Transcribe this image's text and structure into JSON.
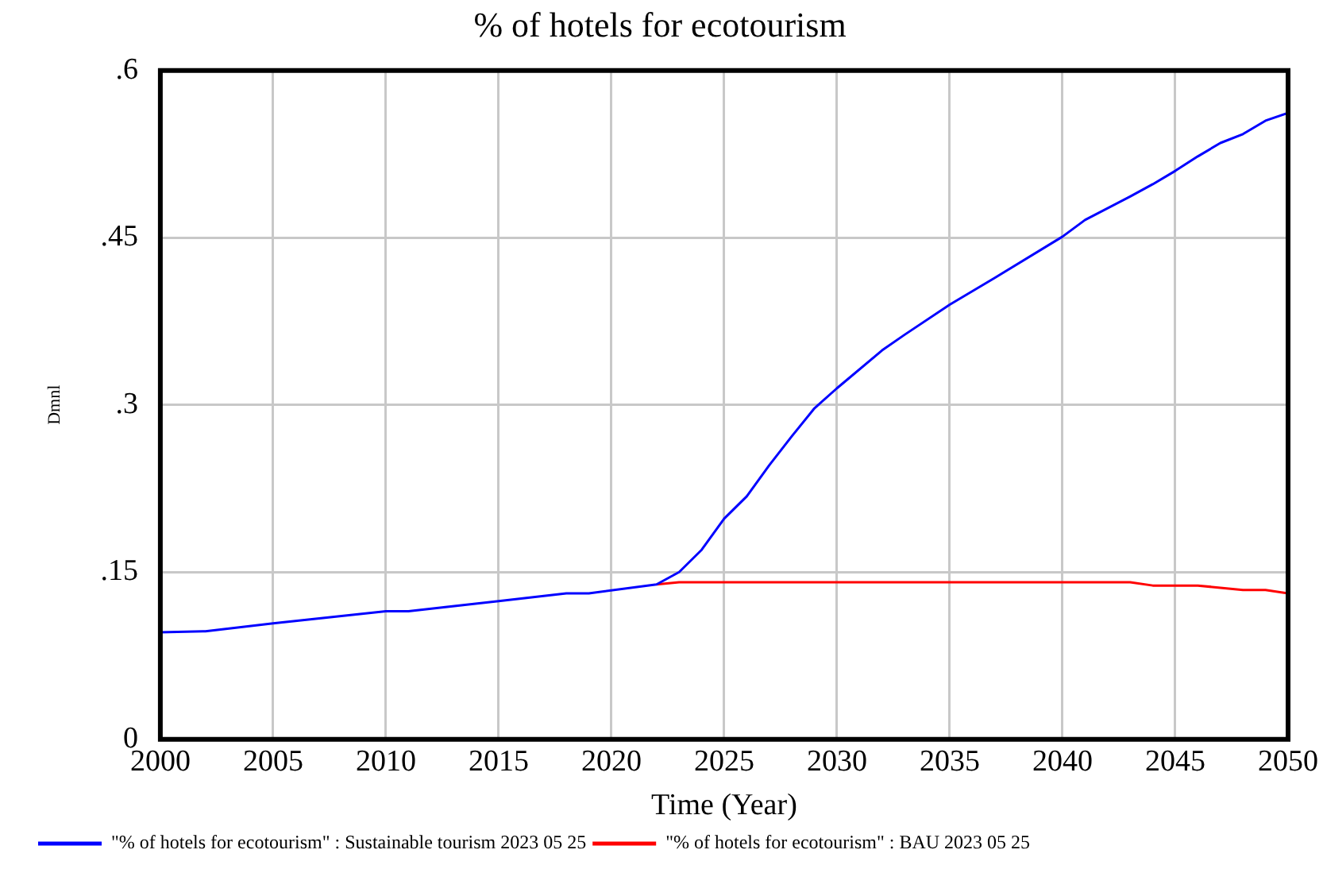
{
  "chart_data": {
    "type": "line",
    "title": "% of hotels for ecotourism",
    "xlabel": "Time (Year)",
    "ylabel": "Dmnl",
    "x": [
      2000,
      2002,
      2005,
      2010,
      2011,
      2015,
      2018,
      2019,
      2022,
      2023,
      2024,
      2025,
      2026,
      2027,
      2028,
      2029,
      2030,
      2032,
      2033,
      2035,
      2037,
      2040,
      2041,
      2043,
      2044,
      2045,
      2046,
      2047,
      2048,
      2049,
      2050
    ],
    "series": [
      {
        "name": "\"% of hotels for ecotourism\" : Sustainable tourism 2023 05 25",
        "color": "#0000ff",
        "values": [
          0.096,
          0.097,
          0.104,
          0.115,
          0.115,
          0.124,
          0.131,
          0.131,
          0.139,
          0.15,
          0.17,
          0.198,
          0.218,
          0.246,
          0.272,
          0.297,
          0.315,
          0.349,
          0.363,
          0.39,
          0.414,
          0.451,
          0.466,
          0.487,
          0.498,
          0.51,
          0.523,
          0.535,
          0.543,
          0.555,
          0.562
        ]
      },
      {
        "name": "\"% of hotels for ecotourism\" : BAU 2023 05 25",
        "color": "#ff0000",
        "values": [
          null,
          null,
          null,
          null,
          null,
          null,
          null,
          null,
          0.139,
          0.141,
          0.141,
          0.141,
          0.141,
          0.141,
          0.141,
          0.141,
          0.141,
          0.141,
          0.141,
          0.141,
          0.141,
          0.141,
          0.141,
          0.141,
          0.138,
          0.138,
          0.138,
          0.136,
          0.134,
          0.134,
          0.131
        ]
      }
    ],
    "xlim": [
      2000,
      2050
    ],
    "xticks": [
      2000,
      2005,
      2010,
      2015,
      2020,
      2025,
      2030,
      2035,
      2040,
      2045,
      2050
    ],
    "ylim": [
      0,
      0.6
    ],
    "yticks": [
      {
        "value": 0,
        "label": "0"
      },
      {
        "value": 0.15,
        "label": ".15"
      },
      {
        "value": 0.3,
        "label": ".3"
      },
      {
        "value": 0.45,
        "label": ".45"
      },
      {
        "value": 0.6,
        "label": ".6"
      }
    ],
    "grid": true,
    "legend": "bottom",
    "marker": "none",
    "line_style": "solid"
  }
}
